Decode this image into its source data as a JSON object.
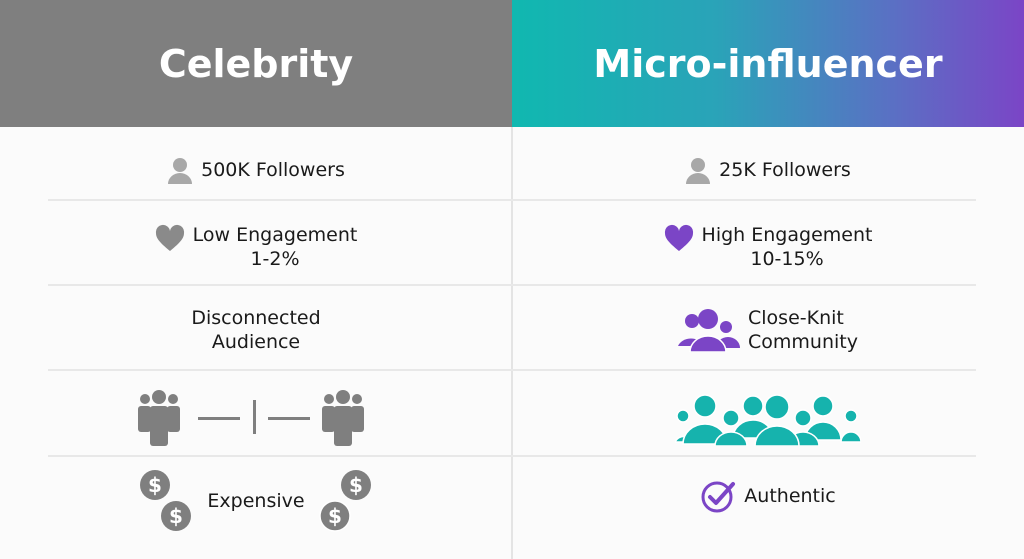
{
  "headers": {
    "left": "Celebrity",
    "right": "Micro-influencer"
  },
  "colors": {
    "gray": "#7f7f7f",
    "teal": "#16b3ad",
    "purple": "#7b45c6"
  },
  "rows": [
    {
      "left": {
        "icon": "user-icon",
        "text": "500K Followers"
      },
      "right": {
        "icon": "user-icon",
        "text": "25K Followers"
      }
    },
    {
      "left": {
        "icon": "heart-icon",
        "line1": "Low Engagement",
        "line2": "1-2%"
      },
      "right": {
        "icon": "heart-icon",
        "line1": "High Engagement",
        "line2": "10-15%"
      }
    },
    {
      "left": {
        "line1": "Disconnected",
        "line2": "Audience"
      },
      "right": {
        "icon": "group-icon",
        "line1": "Close-Knit",
        "line2": "Community"
      }
    },
    {
      "left": {
        "icon": "separated-groups-icon"
      },
      "right": {
        "icon": "crowd-icon"
      }
    },
    {
      "left": {
        "icon": "dollar-coin-icon",
        "text": "Expensive"
      },
      "right": {
        "icon": "check-circle-icon",
        "text": "Authentic"
      }
    }
  ]
}
